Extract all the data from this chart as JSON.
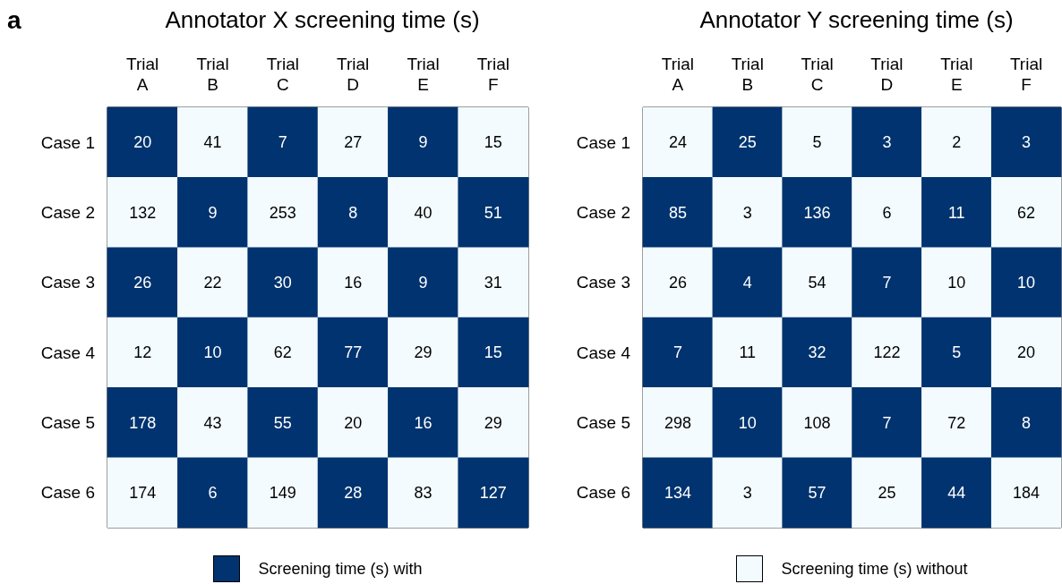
{
  "chart_data": [
    {
      "type": "heatmap",
      "title": "Annotator X screening time (s)",
      "annotations": [
        "a"
      ],
      "legend_title": "Screening time (s) with",
      "data_labels": true,
      "categories": [
        "Trial\nA",
        "Trial\nB",
        "Trial\nC",
        "Trial\nD",
        "Trial\nE",
        "Trial\nF"
      ],
      "y_categories": [
        "Case 1",
        "Case 2",
        "Case 3",
        "Case 4",
        "Case 5",
        "Case 6"
      ],
      "cells": [
        [
          20,
          41,
          7,
          27,
          9,
          15
        ],
        [
          132,
          9,
          253,
          8,
          40,
          51
        ],
        [
          26,
          22,
          30,
          16,
          9,
          31
        ],
        [
          12,
          10,
          62,
          77,
          29,
          15
        ],
        [
          178,
          43,
          55,
          20,
          16,
          29
        ],
        [
          174,
          6,
          149,
          28,
          83,
          127
        ]
      ],
      "colors": [
        [
          "#00336f",
          "#f3fbfe",
          "#00336f",
          "#f3fbfe",
          "#00336f",
          "#f3fbfe"
        ],
        [
          "#f3fbfe",
          "#00336f",
          "#f3fbfe",
          "#00336f",
          "#f3fbfe",
          "#00336f"
        ],
        [
          "#00336f",
          "#f3fbfe",
          "#00336f",
          "#f3fbfe",
          "#00336f",
          "#f3fbfe"
        ],
        [
          "#f3fbfe",
          "#00336f",
          "#f3fbfe",
          "#00336f",
          "#f3fbfe",
          "#00336f"
        ],
        [
          "#00336f",
          "#f3fbfe",
          "#00336f",
          "#f3fbfe",
          "#00336f",
          "#f3fbfe"
        ],
        [
          "#f3fbfe",
          "#00336f",
          "#f3fbfe",
          "#00336f",
          "#f3fbfe",
          "#00336f"
        ]
      ]
    },
    {
      "type": "heatmap",
      "title": "Annotator Y screening time (s)",
      "legend_title": "Screening time (s) without",
      "data_labels": true,
      "categories": [
        "Trial\nA",
        "Trial\nB",
        "Trial\nC",
        "Trial\nD",
        "Trial\nE",
        "Trial\nF"
      ],
      "y_categories": [
        "Case 1",
        "Case 2",
        "Case 3",
        "Case 4",
        "Case 5",
        "Case 6"
      ],
      "cells": [
        [
          24,
          25,
          5,
          3,
          2,
          3
        ],
        [
          85,
          3,
          136,
          6,
          11,
          62
        ],
        [
          26,
          4,
          54,
          7,
          10,
          10
        ],
        [
          7,
          11,
          32,
          122,
          5,
          20
        ],
        [
          298,
          10,
          108,
          7,
          72,
          8
        ],
        [
          134,
          3,
          57,
          25,
          44,
          184
        ]
      ],
      "colors": [
        [
          "#f3fbfe",
          "#00336f",
          "#f3fbfe",
          "#00336f",
          "#f3fbfe",
          "#00336f"
        ],
        [
          "#00336f",
          "#f3fbfe",
          "#00336f",
          "#f3fbfe",
          "#00336f",
          "#f3fbfe"
        ],
        [
          "#f3fbfe",
          "#00336f",
          "#f3fbfe",
          "#00336f",
          "#f3fbfe",
          "#00336f"
        ],
        [
          "#00336f",
          "#f3fbfe",
          "#00336f",
          "#f3fbfe",
          "#00336f",
          "#f3fbfe"
        ],
        [
          "#f3fbfe",
          "#00336f",
          "#f3fbfe",
          "#00336f",
          "#f3fbfe",
          "#00336f"
        ],
        [
          "#00336f",
          "#f3fbfe",
          "#00336f",
          "#f3fbfe",
          "#00336f",
          "#f3fbfe"
        ]
      ]
    }
  ]
}
